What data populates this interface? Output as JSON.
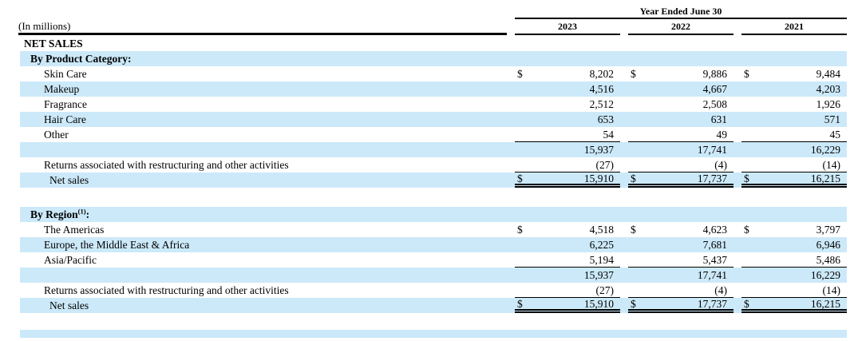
{
  "units_label": "(In millions)",
  "period_header": "Year Ended June 30",
  "years": [
    "2023",
    "2022",
    "2021"
  ],
  "currency_symbol": "$",
  "colors": {
    "row_highlight": "#cce9f9",
    "text": "#000000",
    "rule": "#000000"
  },
  "rows": [
    {
      "type": "section",
      "label": "NET SALES",
      "shaded": false
    },
    {
      "type": "subheader",
      "label": "By Product Category:",
      "shaded": true
    },
    {
      "type": "item",
      "label": "Skin Care",
      "shaded": false,
      "dollar": true,
      "values": [
        "8,202",
        "9,886",
        "9,484"
      ]
    },
    {
      "type": "item",
      "label": "Makeup",
      "shaded": true,
      "values": [
        "4,516",
        "4,667",
        "4,203"
      ]
    },
    {
      "type": "item",
      "label": "Fragrance",
      "shaded": false,
      "values": [
        "2,512",
        "2,508",
        "1,926"
      ]
    },
    {
      "type": "item",
      "label": "Hair Care",
      "shaded": true,
      "values": [
        "653",
        "631",
        "571"
      ]
    },
    {
      "type": "item",
      "label": "Other",
      "shaded": false,
      "values": [
        "54",
        "49",
        "45"
      ],
      "rule": "single"
    },
    {
      "type": "total",
      "label": "",
      "shaded": true,
      "values": [
        "15,937",
        "17,741",
        "16,229"
      ]
    },
    {
      "type": "item",
      "label": "Returns associated with restructuring and other activities",
      "shaded": false,
      "values": [
        "(27)",
        "(4)",
        "(14)"
      ],
      "rule": "single"
    },
    {
      "type": "netsales",
      "label": "Net sales",
      "shaded": true,
      "dollar": true,
      "values": [
        "15,910",
        "17,737",
        "16,215"
      ],
      "rule": "double"
    },
    {
      "type": "spacer"
    },
    {
      "type": "subheader",
      "label": "By Region",
      "sup": "(1)",
      "suffix": ":",
      "shaded": true
    },
    {
      "type": "item",
      "label": "The Americas",
      "shaded": false,
      "dollar": true,
      "values": [
        "4,518",
        "4,623",
        "3,797"
      ]
    },
    {
      "type": "item",
      "label": "Europe, the Middle East & Africa",
      "shaded": true,
      "values": [
        "6,225",
        "7,681",
        "6,946"
      ]
    },
    {
      "type": "item",
      "label": "Asia/Pacific",
      "shaded": false,
      "values": [
        "5,194",
        "5,437",
        "5,486"
      ],
      "rule": "single"
    },
    {
      "type": "total",
      "label": "",
      "shaded": true,
      "values": [
        "15,937",
        "17,741",
        "16,229"
      ]
    },
    {
      "type": "item",
      "label": "Returns associated with restructuring and other activities",
      "shaded": false,
      "values": [
        "(27)",
        "(4)",
        "(14)"
      ],
      "rule": "single"
    },
    {
      "type": "netsales",
      "label": "Net sales",
      "shaded": true,
      "dollar": true,
      "values": [
        "15,910",
        "17,737",
        "16,215"
      ],
      "rule": "double"
    },
    {
      "type": "spacer",
      "short": true
    },
    {
      "type": "strip"
    }
  ]
}
